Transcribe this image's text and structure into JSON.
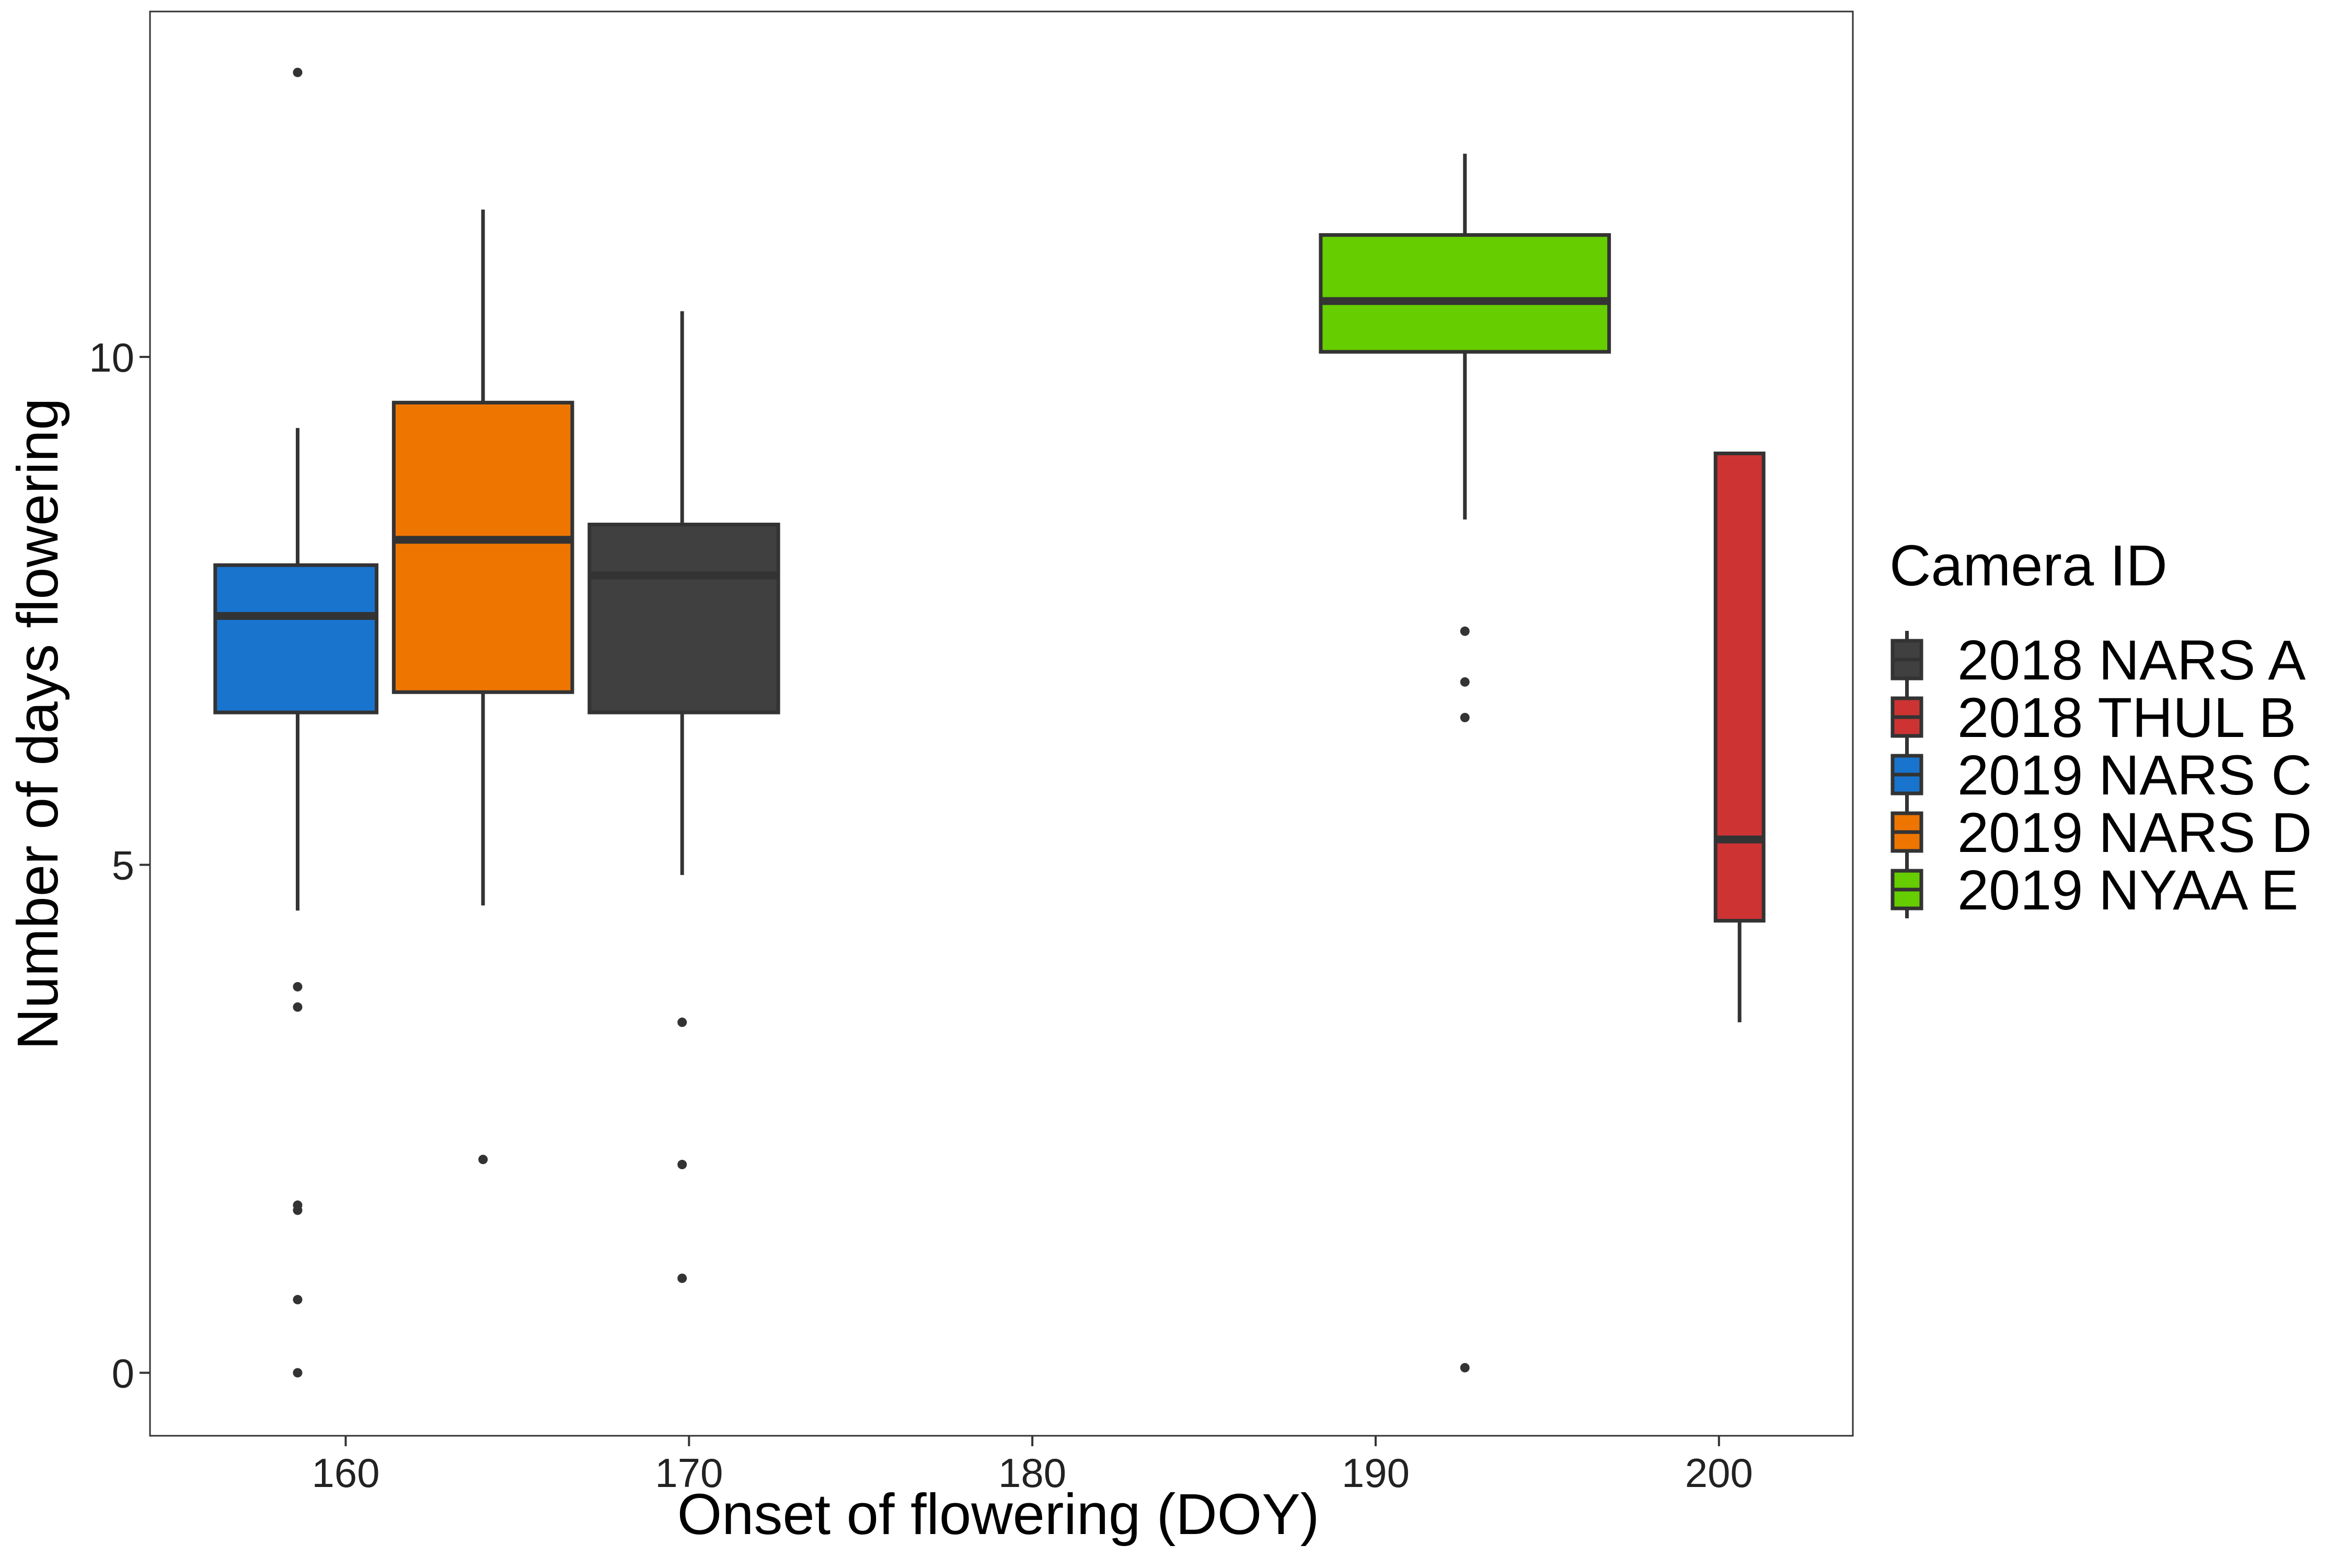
{
  "chart_data": {
    "type": "boxplot",
    "title": "",
    "xlabel": "Onset of flowering (DOY)",
    "ylabel": "Number of days flowering",
    "xlim": [
      154.3,
      203.9
    ],
    "ylim": [
      -0.62,
      13.4
    ],
    "x_ticks": [
      160,
      170,
      180,
      190,
      200
    ],
    "y_ticks": [
      0,
      5,
      10
    ],
    "grid": false,
    "legend": {
      "title": "Camera ID",
      "position": "right",
      "entries": [
        "2018 NARS A",
        "2018 THUL B",
        "2019 NARS C",
        "2019 NARS D",
        "2019 NYAA E"
      ]
    },
    "series": [
      {
        "name": "2019 NARS C",
        "color": "#1874CD",
        "x_center": 158.6,
        "x_range": [
          156.2,
          160.9
        ],
        "whisker_low": 4.55,
        "q1": 6.5,
        "median": 7.45,
        "q3": 7.95,
        "whisker_high": 9.3,
        "outliers": [
          12.8,
          3.8,
          3.6,
          1.65,
          1.6,
          0.72,
          0.0
        ]
      },
      {
        "name": "2019 NARS D",
        "color": "#EE7600",
        "x_center": 164.0,
        "x_range": [
          161.4,
          166.6
        ],
        "whisker_low": 4.6,
        "q1": 6.7,
        "median": 8.2,
        "q3": 9.55,
        "whisker_high": 11.45,
        "outliers": [
          2.1
        ]
      },
      {
        "name": "2018 NARS A",
        "color": "#404040",
        "x_center": 169.8,
        "x_range": [
          167.1,
          172.6
        ],
        "whisker_low": 4.9,
        "q1": 6.5,
        "median": 7.85,
        "q3": 8.35,
        "whisker_high": 10.45,
        "outliers": [
          3.45,
          2.05,
          0.93
        ]
      },
      {
        "name": "2019 NYAA E",
        "color": "#66CD00",
        "x_center": 192.6,
        "x_range": [
          188.4,
          196.8
        ],
        "whisker_low": 8.4,
        "q1": 10.05,
        "median": 10.55,
        "q3": 11.2,
        "whisker_high": 12.0,
        "outliers": [
          7.3,
          6.8,
          6.45,
          0.05
        ]
      },
      {
        "name": "2018 THUL B",
        "color": "#CD3333",
        "x_center": 200.6,
        "x_range": [
          199.9,
          201.3
        ],
        "whisker_low": 3.45,
        "q1": 4.45,
        "median": 5.25,
        "q3": 9.05,
        "whisker_high": 9.05,
        "outliers": []
      }
    ]
  }
}
